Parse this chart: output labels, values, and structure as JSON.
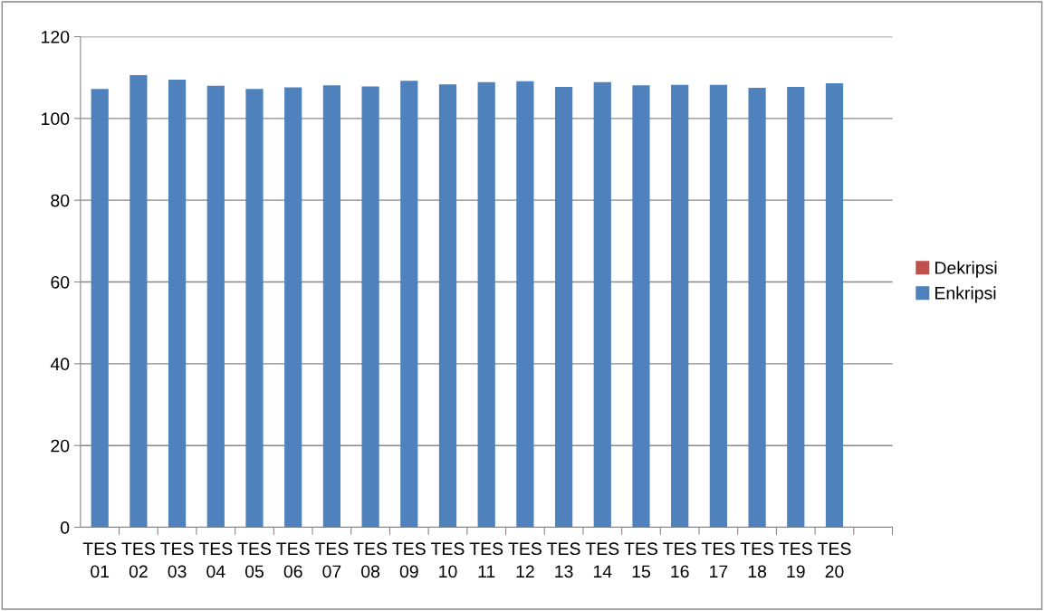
{
  "chart_data": {
    "type": "bar",
    "categories": [
      "TES\n01",
      "TES\n02",
      "TES\n03",
      "TES\n04",
      "TES\n05",
      "TES\n06",
      "TES\n07",
      "TES\n08",
      "TES\n09",
      "TES\n10",
      "TES\n11",
      "TES\n12",
      "TES\n13",
      "TES\n14",
      "TES\n15",
      "TES\n16",
      "TES\n17",
      "TES\n18",
      "TES\n19",
      "TES\n20",
      null
    ],
    "series": [
      {
        "name": "Enkripsi",
        "color": "#4f81bd",
        "values": [
          107.2,
          110.6,
          109.5,
          108.0,
          107.2,
          107.6,
          108.1,
          107.8,
          109.2,
          108.3,
          108.9,
          109.1,
          107.7,
          108.9,
          108.1,
          108.2,
          108.2,
          107.5,
          107.7,
          108.6,
          null
        ]
      },
      {
        "name": "Dekripsi",
        "color": "#c0504d",
        "values": [
          null,
          null,
          null,
          null,
          null,
          null,
          null,
          null,
          null,
          null,
          null,
          null,
          null,
          null,
          null,
          null,
          null,
          null,
          null,
          null,
          null
        ]
      }
    ],
    "ylim": [
      0,
      120
    ],
    "yticks": [
      0,
      20,
      40,
      60,
      80,
      100,
      120
    ],
    "grid": "y",
    "legend": "right"
  }
}
